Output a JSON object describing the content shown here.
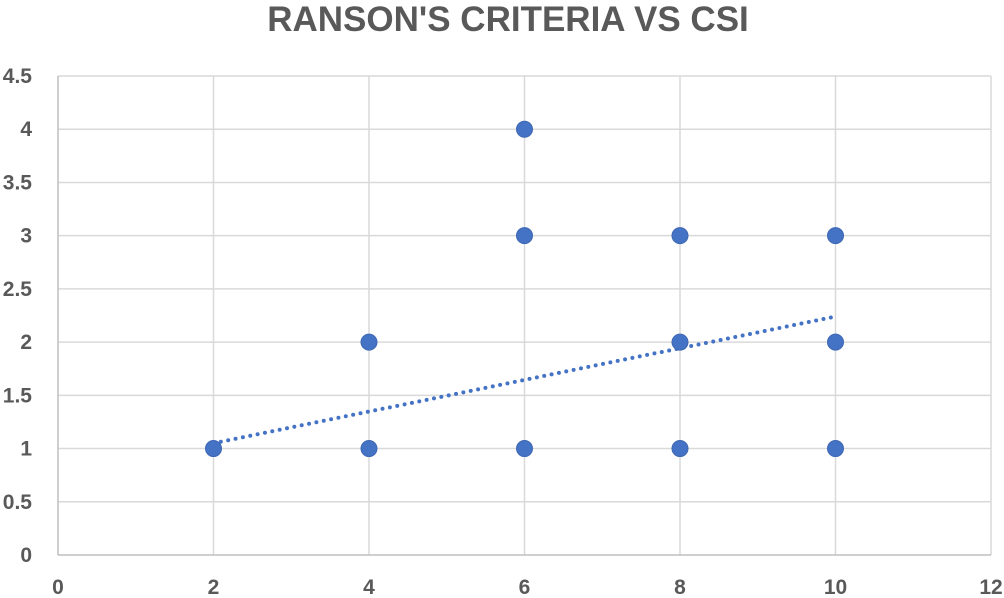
{
  "chart_data": {
    "type": "scatter",
    "title": "RANSON'S CRITERIA VS CSI",
    "xlabel": "",
    "ylabel": "",
    "xlim": [
      0,
      12
    ],
    "ylim": [
      0,
      4.5
    ],
    "x_ticks": [
      "0",
      "2",
      "4",
      "6",
      "8",
      "10",
      "12"
    ],
    "y_ticks": [
      "0",
      "0.5",
      "1",
      "1.5",
      "2",
      "2.5",
      "3",
      "3.5",
      "4",
      "4.5"
    ],
    "grid": true,
    "legend": "none",
    "marker_color": "#4472c4",
    "series": [
      {
        "points": [
          {
            "x": 2,
            "y": 1
          },
          {
            "x": 4,
            "y": 2
          },
          {
            "x": 4,
            "y": 1
          },
          {
            "x": 6,
            "y": 4
          },
          {
            "x": 6,
            "y": 3
          },
          {
            "x": 6,
            "y": 1
          },
          {
            "x": 8,
            "y": 3
          },
          {
            "x": 8,
            "y": 2
          },
          {
            "x": 8,
            "y": 1
          },
          {
            "x": 10,
            "y": 3
          },
          {
            "x": 10,
            "y": 2
          },
          {
            "x": 10,
            "y": 1
          }
        ]
      }
    ],
    "trendline": {
      "type": "linear",
      "style": "dotted",
      "color": "#4472c4",
      "start": {
        "x": 2,
        "y": 1.05
      },
      "end": {
        "x": 10,
        "y": 2.24
      }
    }
  }
}
